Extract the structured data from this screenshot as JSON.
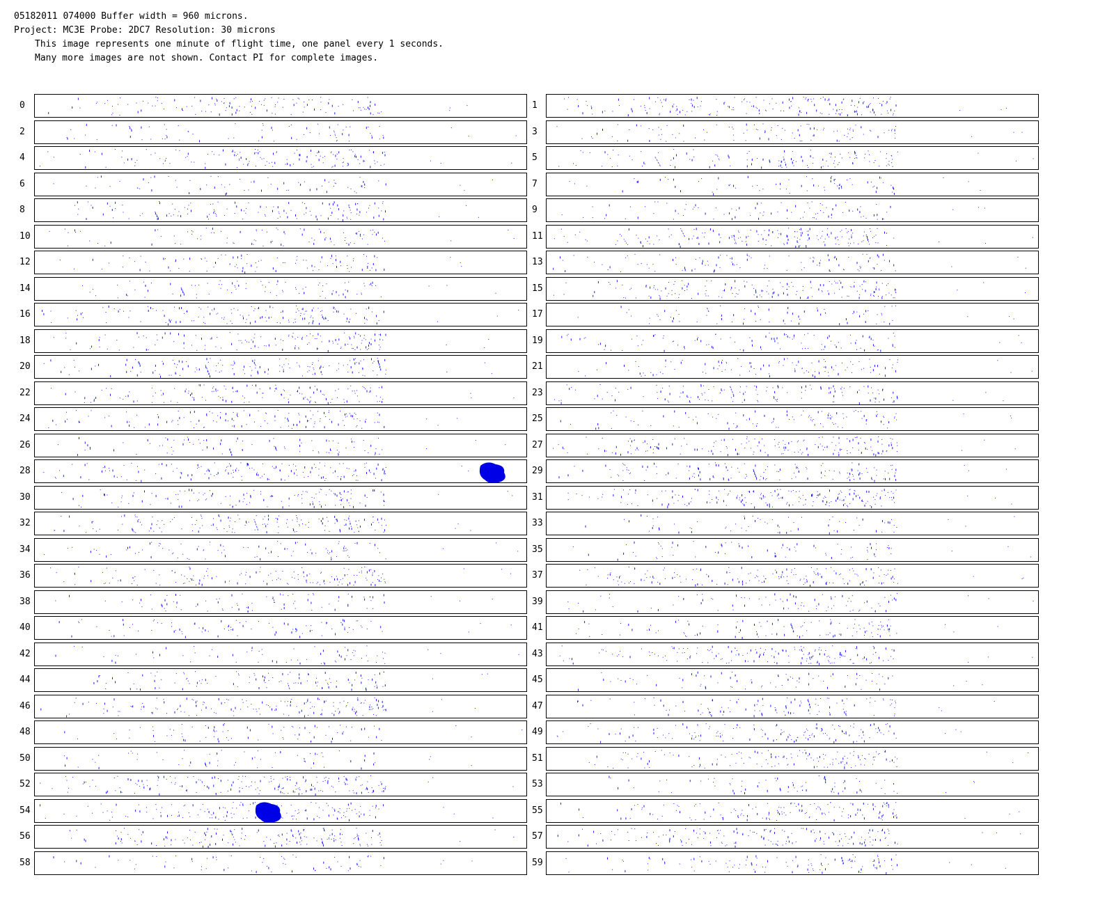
{
  "header": {
    "line1": "05182011 074000  Buffer width = 960 microns.",
    "line2": "Project: MC3E   Probe: 2DC7    Resolution: 30 microns",
    "line3": "This image represents one minute of flight time, one panel every 1 seconds.",
    "line4": "Many more images are not shown.  Contact PI for complete images."
  },
  "panels": [
    "0",
    "1",
    "2",
    "3",
    "4",
    "5",
    "6",
    "7",
    "8",
    "9",
    "10",
    "11",
    "12",
    "13",
    "14",
    "15",
    "16",
    "17",
    "18",
    "19",
    "20",
    "21",
    "22",
    "23",
    "24",
    "25",
    "26",
    "27",
    "28",
    "29",
    "30",
    "31",
    "32",
    "33",
    "34",
    "35",
    "36",
    "37",
    "38",
    "39",
    "40",
    "41",
    "42",
    "43",
    "44",
    "45",
    "46",
    "47",
    "48",
    "49",
    "50",
    "51",
    "52",
    "53",
    "54",
    "55",
    "56",
    "57",
    "58",
    "59"
  ],
  "colors": {
    "particle": "#1a1aff",
    "large_particle": "#0000e6",
    "border": "#000000"
  }
}
